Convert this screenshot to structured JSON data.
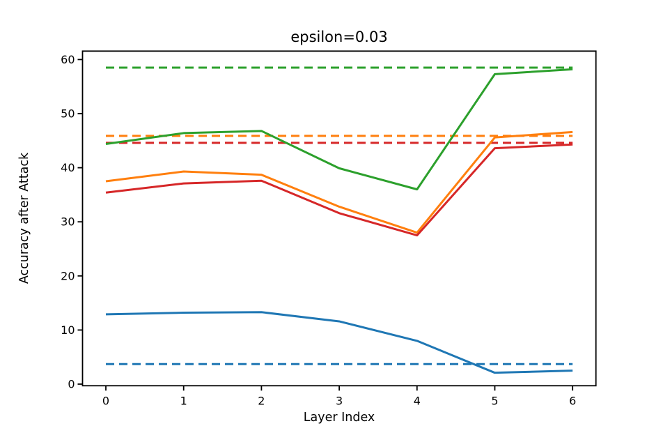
{
  "figure": {
    "background_color": "#ffffff",
    "axis_color": "#000000"
  },
  "chart_data": {
    "type": "line",
    "title": "epsilon=0.03",
    "xlabel": "Layer Index",
    "ylabel": "Accuracy after Attack",
    "x": [
      0,
      1,
      2,
      3,
      4,
      5,
      6
    ],
    "xticks": [
      0,
      1,
      2,
      3,
      4,
      5,
      6
    ],
    "yticks": [
      0,
      10,
      20,
      30,
      40,
      50,
      60
    ],
    "xlim": [
      -0.3,
      6.3
    ],
    "ylim": [
      -0.3,
      61.56
    ],
    "grid": false,
    "legend": "none",
    "series": [
      {
        "name": "blue-solid",
        "color": "#1f77b4",
        "style": "solid",
        "values": [
          12.9,
          13.2,
          13.3,
          11.6,
          8.0,
          2.1,
          2.5
        ]
      },
      {
        "name": "orange-solid",
        "color": "#ff7f0e",
        "style": "solid",
        "values": [
          37.5,
          39.3,
          38.7,
          32.8,
          28.0,
          45.6,
          46.6
        ]
      },
      {
        "name": "red-solid",
        "color": "#d62728",
        "style": "solid",
        "values": [
          35.4,
          37.1,
          37.6,
          31.6,
          27.5,
          43.6,
          44.3
        ]
      },
      {
        "name": "green-solid",
        "color": "#2ca02c",
        "style": "solid",
        "values": [
          44.4,
          46.4,
          46.8,
          39.9,
          36.0,
          57.3,
          58.2
        ]
      }
    ],
    "baselines": [
      {
        "name": "green-dashed",
        "color": "#2ca02c",
        "style": "dashed",
        "value": 58.5
      },
      {
        "name": "orange-dashed",
        "color": "#ff7f0e",
        "style": "dashed",
        "value": 45.9
      },
      {
        "name": "red-dashed",
        "color": "#d62728",
        "style": "dashed",
        "value": 44.6
      },
      {
        "name": "blue-dashed",
        "color": "#1f77b4",
        "style": "dashed",
        "value": 3.7
      }
    ]
  }
}
